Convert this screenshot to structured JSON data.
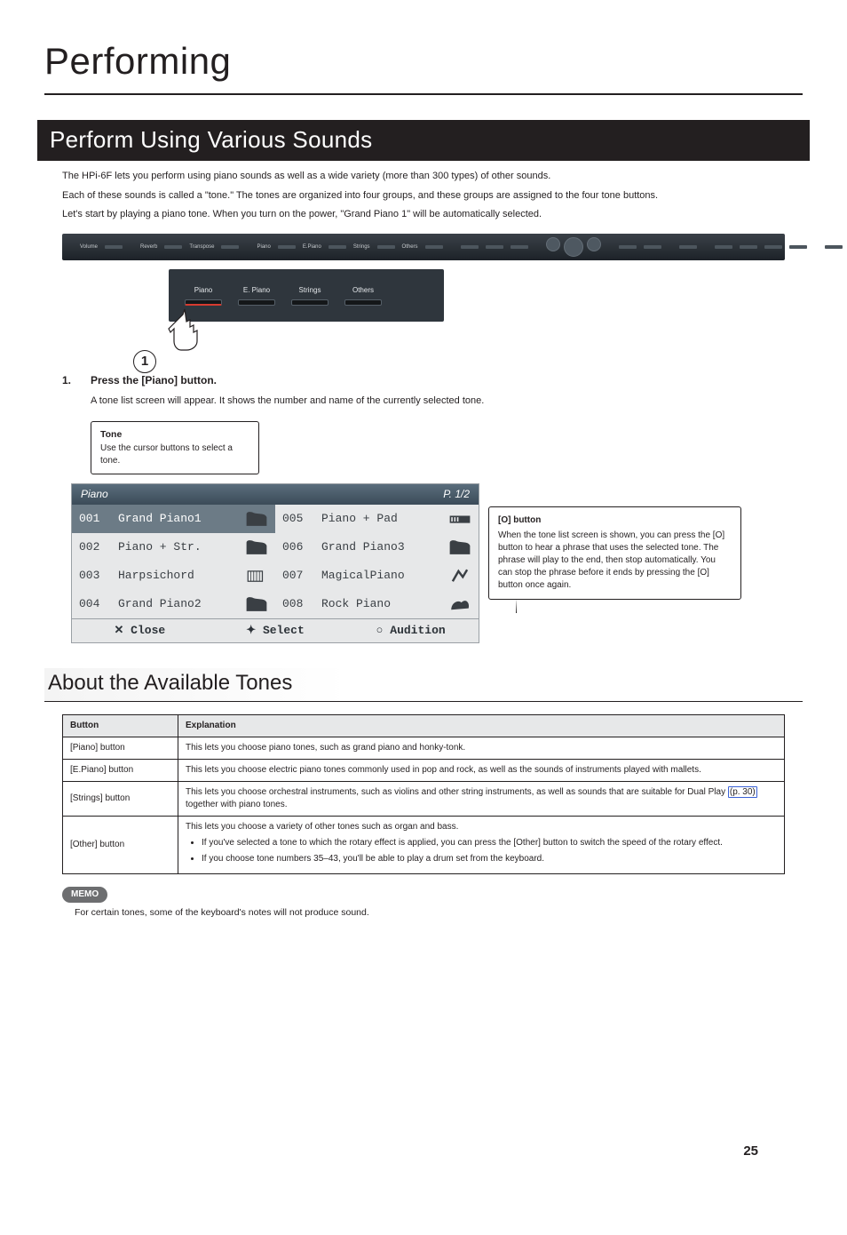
{
  "page_title": "Performing",
  "page_number": "25",
  "section1": {
    "title": "Perform Using Various Sounds",
    "p1": "The HPi-6F lets you perform using piano sounds as well as a wide variety (more than 300 types) of other sounds.",
    "p2": "Each of these sounds is called a \"tone.\" The tones are organized into four groups, and these groups are assigned to the four tone buttons.",
    "p3": "Let's start by playing a piano tone. When you turn on the power, \"Grand Piano 1\" will be automatically selected.",
    "tone_buttons": [
      "Piano",
      "E. Piano",
      "Strings",
      "Others"
    ],
    "step_marker": "1",
    "step_num": "1.",
    "step_text": "Press the [Piano] button.",
    "step_desc": "A tone list screen will appear. It shows the number and name of the currently selected tone.",
    "callout": {
      "title": "Tone",
      "body": "Use the cursor buttons to select a tone."
    },
    "lcd": {
      "header_left": "Piano",
      "header_right": "P. 1/2",
      "left_col": [
        {
          "num": "001",
          "name": "Grand Piano1",
          "sel": true
        },
        {
          "num": "002",
          "name": "Piano + Str.",
          "sel": false
        },
        {
          "num": "003",
          "name": "Harpsichord",
          "sel": false
        },
        {
          "num": "004",
          "name": "Grand Piano2",
          "sel": false
        }
      ],
      "right_col": [
        {
          "num": "005",
          "name": "Piano + Pad",
          "sel": false
        },
        {
          "num": "006",
          "name": "Grand Piano3",
          "sel": false
        },
        {
          "num": "007",
          "name": "MagicalPiano",
          "sel": false
        },
        {
          "num": "008",
          "name": "Rock Piano",
          "sel": false
        }
      ],
      "footer": {
        "close": "✕ Close",
        "select": "✦ Select",
        "audition": "○ Audition"
      }
    },
    "o_note": {
      "title": "[O] button",
      "body": "When the tone list screen is shown, you can press the [O] button to hear a phrase that uses the selected tone. The phrase will play to the end, then stop automatically. You can stop the phrase before it ends by pressing the [O] button once again."
    }
  },
  "section2": {
    "title": "About the Available Tones",
    "table": {
      "headers": [
        "Button",
        "Explanation"
      ],
      "rows": [
        {
          "button": "[Piano] button",
          "exp": "This lets you choose piano tones, such as grand piano and honky-tonk."
        },
        {
          "button": "[E.Piano] button",
          "exp": "This lets you choose electric piano tones commonly used in pop and rock, as well as the sounds of instruments played with mallets."
        },
        {
          "button": "[Strings] button",
          "exp_pre": "This lets you choose orchestral instruments, such as violins and other string instruments, as well as sounds that are suitable for Dual Play ",
          "link": "(p. 30)",
          "exp_post": " together with piano tones."
        },
        {
          "button": "[Other] button",
          "exp_main": "This lets you choose a variety of other tones such as organ and bass.",
          "bullets": [
            "If you've selected a tone to which the rotary effect is applied, you can press the [Other] button to switch the speed of the rotary effect.",
            "If you choose tone numbers 35–43, you'll be able to play a drum set from the keyboard."
          ]
        }
      ]
    },
    "memo_label": "MEMO",
    "memo_text": "For certain tones, some of the keyboard's notes will not produce sound."
  },
  "colors": {
    "bar_bg": "#231f20",
    "lcd_bg": "#e7e8e9",
    "lcd_header": "#4a5c6a",
    "sel_row": "#6c7b86",
    "memo_bg": "#6d6e70",
    "active_red": "#d73b2f",
    "link_border": "#3b62d6"
  }
}
